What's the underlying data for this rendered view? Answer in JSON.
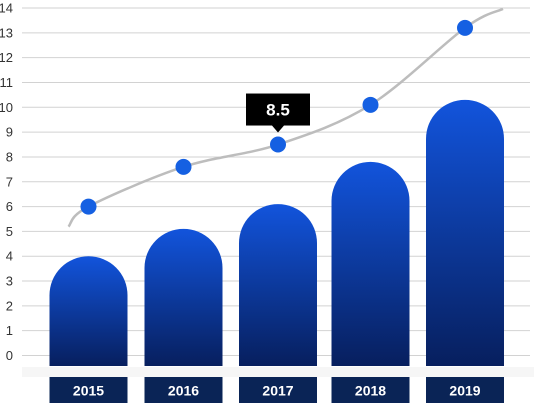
{
  "chart_data": {
    "type": "bar",
    "categories": [
      "2015",
      "2016",
      "2017",
      "2018",
      "2019"
    ],
    "series": [
      {
        "type": "bar",
        "values": [
          4.0,
          5.1,
          6.1,
          7.8,
          10.3
        ]
      },
      {
        "type": "line",
        "values": [
          6.0,
          7.6,
          8.5,
          10.1,
          13.2
        ]
      }
    ],
    "y_ticks": [
      0,
      1,
      2,
      3,
      4,
      5,
      6,
      7,
      8,
      9,
      10,
      11,
      12,
      13,
      14
    ],
    "ylim": [
      -0.5,
      14.2
    ],
    "highlight": {
      "category": "2017",
      "label": "8.5"
    },
    "grid": true,
    "title": "",
    "xlabel": "",
    "ylabel": ""
  },
  "colors": {
    "bar_top": "#1254dc",
    "bar_bottom": "#071f5e",
    "category_bg": "#0a2456",
    "marker": "#1560e2",
    "curve": "#bdbdbd",
    "tooltip_bg": "#000000",
    "grid": "#d2d2d2"
  }
}
